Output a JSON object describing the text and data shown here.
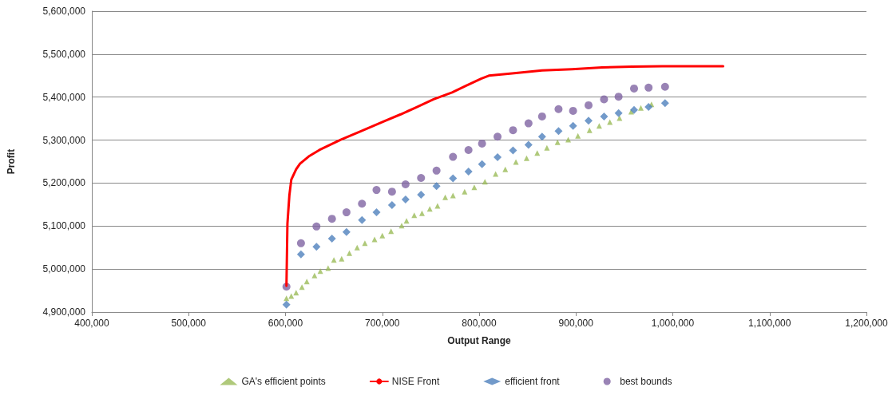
{
  "chart_data": {
    "type": "scatter",
    "xlabel": "Output Range",
    "ylabel": "Profit",
    "xlim": [
      400000,
      1200000
    ],
    "xticks": [
      {
        "value": 400000,
        "label": "400,000"
      },
      {
        "value": 500000,
        "label": "500,000"
      },
      {
        "value": 600000,
        "label": "600,000"
      },
      {
        "value": 700000,
        "label": "700,000"
      },
      {
        "value": 800000,
        "label": "800,000"
      },
      {
        "value": 900000,
        "label": "900,000"
      },
      {
        "value": 1000000,
        "label": "1,000,000"
      },
      {
        "value": 1100000,
        "label": "1,100,000"
      },
      {
        "value": 1200000,
        "label": "1,200,000"
      }
    ],
    "ylim": [
      4900000,
      5600000
    ],
    "yticks": [
      {
        "value": 4900000,
        "label": "4,900,000"
      },
      {
        "value": 5000000,
        "label": "5,000,000"
      },
      {
        "value": 5100000,
        "label": "5,100,000"
      },
      {
        "value": 5200000,
        "label": "5,200,000"
      },
      {
        "value": 5300000,
        "label": "5,300,000"
      },
      {
        "value": 5400000,
        "label": "5,400,000"
      },
      {
        "value": 5500000,
        "label": "5,500,000"
      },
      {
        "value": 5600000,
        "label": "5,600,000"
      }
    ],
    "grid": "y",
    "legend": "bottom",
    "series": [
      {
        "name": "GA's efficient points",
        "marker": "triangle",
        "color": "#9bbb59",
        "x": [
          601000,
          606000,
          611000,
          617000,
          622000,
          630000,
          636000,
          644000,
          650000,
          658000,
          666000,
          674000,
          682000,
          692000,
          700000,
          709000,
          720000,
          725000,
          733000,
          741000,
          749000,
          757000,
          765000,
          773000,
          785000,
          795000,
          806000,
          817000,
          827000,
          838000,
          849000,
          860000,
          870000,
          881000,
          892000,
          902000,
          914000,
          924000,
          935000,
          945000,
          957000,
          967000,
          978000
        ],
        "values": [
          4932000,
          4937000,
          4945000,
          4958000,
          4971000,
          4985000,
          4995000,
          5002000,
          5021000,
          5024000,
          5037000,
          5050000,
          5060000,
          5069000,
          5078000,
          5088000,
          5101000,
          5112000,
          5125000,
          5130000,
          5140000,
          5147000,
          5167000,
          5171000,
          5180000,
          5190000,
          5203000,
          5221000,
          5232000,
          5249000,
          5258000,
          5270000,
          5282000,
          5295000,
          5301000,
          5310000,
          5323000,
          5333000,
          5342000,
          5351000,
          5366000,
          5375000,
          5383000
        ]
      },
      {
        "name": "NISE Front",
        "type": "line",
        "marker": "none",
        "line_style": "solid",
        "color": "#ff0000",
        "x": [
          601000,
          602000,
          604000,
          606000,
          611000,
          615000,
          624000,
          635000,
          657000,
          678000,
          703000,
          719000,
          734000,
          753000,
          772000,
          787000,
          802000,
          810000,
          834000,
          865000,
          896000,
          927000,
          958000,
          989000,
          1052000
        ],
        "values": [
          4961000,
          5106000,
          5171000,
          5208000,
          5232000,
          5245000,
          5262000,
          5277000,
          5301000,
          5321000,
          5345000,
          5360000,
          5375000,
          5395000,
          5411000,
          5427000,
          5443000,
          5450000,
          5455000,
          5462000,
          5465000,
          5469000,
          5471000,
          5472000,
          5472000
        ]
      },
      {
        "name": "efficient front",
        "marker": "diamond",
        "color": "#4f81bd",
        "x": [
          601000,
          616000,
          632000,
          648000,
          663000,
          679000,
          694000,
          710000,
          724000,
          740000,
          756000,
          773000,
          789000,
          803000,
          819000,
          835000,
          851000,
          865000,
          882000,
          897000,
          913000,
          929000,
          944000,
          960000,
          975000,
          992000
        ],
        "values": [
          4917000,
          5034000,
          5052000,
          5071000,
          5086000,
          5114000,
          5132000,
          5149000,
          5162000,
          5173000,
          5193000,
          5211000,
          5227000,
          5244000,
          5260000,
          5276000,
          5289000,
          5308000,
          5321000,
          5333000,
          5345000,
          5355000,
          5363000,
          5370000,
          5377000,
          5386000
        ]
      },
      {
        "name": "best bounds",
        "marker": "circle",
        "color": "#8064a2",
        "x": [
          601000,
          616000,
          632000,
          648000,
          663000,
          679000,
          694000,
          710000,
          724000,
          740000,
          756000,
          773000,
          789000,
          803000,
          819000,
          835000,
          851000,
          865000,
          882000,
          897000,
          913000,
          929000,
          944000,
          960000,
          975000,
          992000
        ],
        "values": [
          4959000,
          5060000,
          5099000,
          5117000,
          5132000,
          5152000,
          5184000,
          5180000,
          5197000,
          5212000,
          5229000,
          5261000,
          5277000,
          5292000,
          5308000,
          5323000,
          5339000,
          5355000,
          5372000,
          5368000,
          5381000,
          5395000,
          5401000,
          5420000,
          5422000,
          5424000
        ]
      }
    ]
  }
}
